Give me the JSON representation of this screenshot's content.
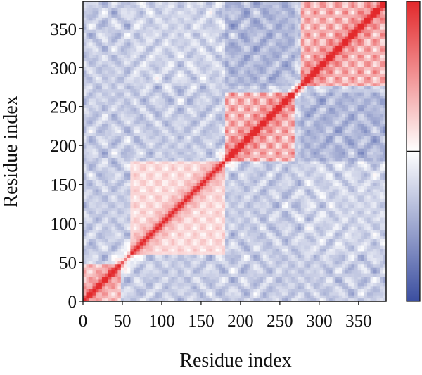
{
  "chart_data": {
    "type": "heatmap",
    "title": "",
    "xlabel": "Residue index",
    "ylabel": "Residue index",
    "xlim": [
      0,
      385
    ],
    "ylim": [
      0,
      385
    ],
    "x_ticks": [
      0,
      50,
      100,
      150,
      200,
      250,
      300,
      350
    ],
    "y_ticks": [
      0,
      50,
      100,
      150,
      200,
      250,
      300,
      350
    ],
    "residue_count": 385,
    "domains": [
      [
        0,
        50
      ],
      [
        60,
        180
      ],
      [
        180,
        270
      ],
      [
        275,
        385
      ]
    ],
    "symmetric": true,
    "diagonal_value": 1.0,
    "color_scale": {
      "min_color": "#3b4ea0",
      "mid_color": "#ffffff",
      "max_color": "#e3282b",
      "range": [
        -1,
        1
      ],
      "midpoint": 0
    },
    "colorbar": {
      "position": "right",
      "tick_labels": []
    },
    "grid": false
  }
}
